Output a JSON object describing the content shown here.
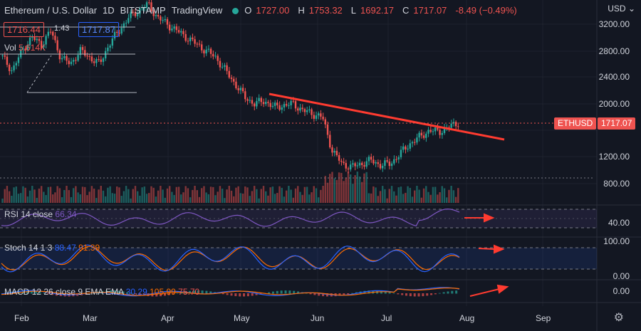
{
  "header": {
    "symbol": "Ethereum / U.S. Dollar",
    "interval": "1D",
    "exchange": "BITSTAMP",
    "platform": "TradingView",
    "open_label": "O",
    "open": "1727.00",
    "high_label": "H",
    "high": "1753.32",
    "low_label": "L",
    "low": "1692.17",
    "close_label": "C",
    "close": "1717.07",
    "change": "-8.49 (−0.49%)"
  },
  "order": {
    "sell": "1716.44",
    "spread": "1.43",
    "buy": "1717.87"
  },
  "volume": {
    "label": "Vol",
    "value": "5.614K"
  },
  "currency": "USD",
  "symbol_tag": "ETHUSD",
  "price_tag": "1717.07",
  "price_ticks": [
    "3200.00",
    "2800.00",
    "2400.00",
    "2000.00",
    "1600.00",
    "1200.00",
    "800.00"
  ],
  "months": [
    "Feb",
    "Mar",
    "Apr",
    "May",
    "Jun",
    "Jul",
    "Aug",
    "Sep"
  ],
  "rsi": {
    "label": "RSI 14 close",
    "value": "66.34",
    "tick": "40.00"
  },
  "stoch": {
    "label": "Stoch 14 1 3",
    "k": "88.47",
    "d": "91.39",
    "tick_hi": "100.00",
    "tick_lo": "0.00"
  },
  "macd": {
    "label": "MACD 12 26 close 9 EMA EMA",
    "v1": "30.29",
    "v2": "105.99",
    "v3": "75.70",
    "tick": "0.00"
  },
  "colors": {
    "up": "#26a69a",
    "down": "#ef5350",
    "trendline": "#ff3b30",
    "rsi": "#7e57c2",
    "stoch_k": "#2962ff",
    "stoch_d": "#ff6d00",
    "bg": "#131722"
  },
  "chart_data": {
    "type": "candlestick",
    "title": "Ethereum / U.S. Dollar 1D BITSTAMP",
    "x_axis": [
      "Feb",
      "Mar",
      "Apr",
      "May",
      "Jun",
      "Jul",
      "Aug",
      "Sep"
    ],
    "ylim": [
      700,
      3600
    ],
    "y_ticks": [
      3200,
      2800,
      2400,
      2000,
      1600,
      1200,
      800
    ],
    "close_series_approx": [
      2700,
      2500,
      2800,
      3000,
      2900,
      3100,
      2700,
      2600,
      2800,
      2700,
      2600,
      2900,
      3100,
      3300,
      3400,
      3500,
      3300,
      3200,
      3100,
      3000,
      2900,
      2800,
      2700,
      2500,
      2300,
      2100,
      2000,
      2050,
      1950,
      1980,
      2000,
      1900,
      1850,
      1800,
      1300,
      1100,
      1050,
      1100,
      1150,
      1080,
      1100,
      1250,
      1400,
      1500,
      1600,
      1580,
      1650,
      1717
    ],
    "last_close": 1717.07,
    "trendline": {
      "from": {
        "month": "May",
        "price": 2200
      },
      "to": {
        "month": "Aug",
        "price": 1500
      }
    },
    "indicators": {
      "rsi_14": 66.34,
      "stoch_k": 88.47,
      "stoch_d": 91.39,
      "macd": 30.29,
      "macd_signal": 105.99,
      "macd_hist": 75.7
    }
  }
}
